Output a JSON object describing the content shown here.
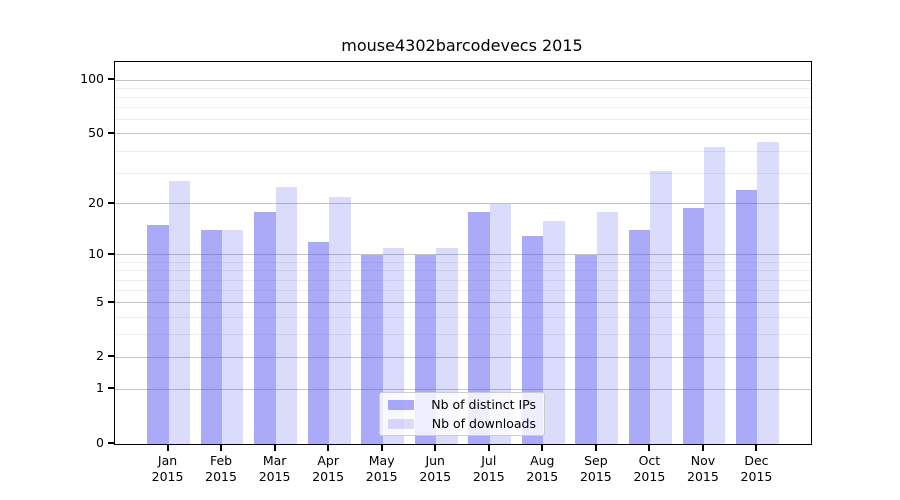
{
  "chart_data": {
    "type": "bar",
    "title": "mouse4302barcodevecs 2015",
    "categories": [
      "Jan",
      "Feb",
      "Mar",
      "Apr",
      "May",
      "Jun",
      "Jul",
      "Aug",
      "Sep",
      "Oct",
      "Nov",
      "Dec"
    ],
    "year_label": "2015",
    "series": [
      {
        "name": "Nb of distinct IPs",
        "color": "rgba(85,85,242,0.50)",
        "values": [
          15,
          14,
          18,
          12,
          10,
          10,
          18,
          13,
          10,
          14,
          19,
          24
        ]
      },
      {
        "name": "Nb of downloads",
        "color": "rgba(85,85,242,0.21)",
        "values": [
          27,
          14,
          25,
          22,
          11,
          11,
          20,
          16,
          18,
          31,
          42,
          45
        ]
      }
    ],
    "y_scale": "log10(value+1)",
    "y_major_ticks": [
      0,
      1,
      2,
      5,
      10,
      20,
      50,
      100
    ],
    "y_minor_ticks": [
      3,
      4,
      6,
      7,
      8,
      9,
      30,
      40,
      60,
      70,
      80,
      90
    ],
    "ylim": [
      0,
      126
    ],
    "grid": true,
    "legend_position": "bottom-center",
    "style": {
      "bar_color_ips": "rgba(85,85,242,0.50)",
      "bar_color_downloads": "rgba(85,85,242,0.21)",
      "major_grid_color": "#c3c3c3",
      "minor_grid_color": "#ededed",
      "axis_color": "#000000"
    }
  }
}
